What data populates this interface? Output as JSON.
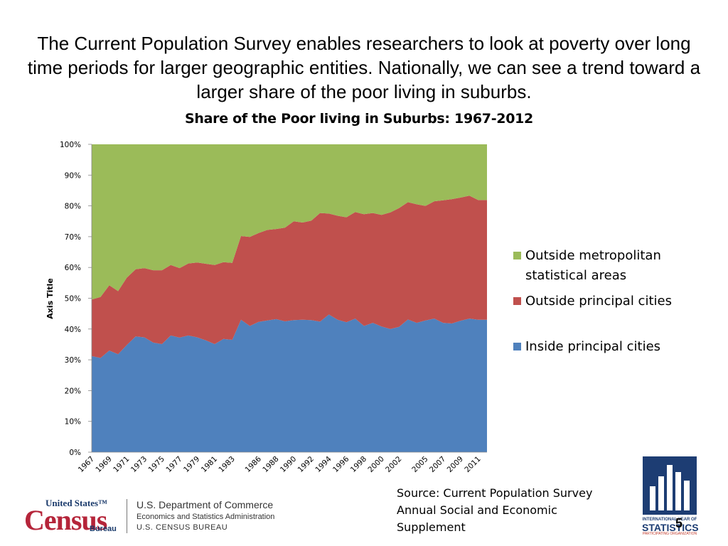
{
  "heading": "The Current Population Survey enables researchers to look at poverty over long time periods for larger geographic entities.  Nationally, we can see a trend toward a larger share of the poor living in suburbs.",
  "chart_data": {
    "type": "area",
    "stacked": true,
    "percent": true,
    "title": "Share of the Poor living in Suburbs:  1967-2012",
    "xlabel": "",
    "ylabel": "Axis Title",
    "ylim": [
      0,
      100
    ],
    "yticks": [
      "0%",
      "10%",
      "20%",
      "30%",
      "40%",
      "50%",
      "60%",
      "70%",
      "80%",
      "90%",
      "100%"
    ],
    "x": [
      1967,
      1968,
      1969,
      1970,
      1971,
      1972,
      1973,
      1974,
      1975,
      1976,
      1977,
      1978,
      1979,
      1980,
      1981,
      1982,
      1983,
      1984,
      1985,
      1986,
      1987,
      1988,
      1989,
      1990,
      1991,
      1992,
      1993,
      1994,
      1995,
      1996,
      1997,
      1998,
      1999,
      2000,
      2001,
      2002,
      2003,
      2004,
      2005,
      2006,
      2007,
      2008,
      2009,
      2010,
      2011,
      2012
    ],
    "xtick_labels": [
      "1967",
      "1969",
      "1971",
      "1973",
      "1975",
      "1977",
      "1979",
      "1981",
      "1983",
      "1986",
      "1988",
      "1990",
      "1992",
      "1994",
      "1996",
      "1998",
      "2000",
      "2002",
      "2005",
      "2007",
      "2009",
      "2011"
    ],
    "legend_position": "right",
    "series": [
      {
        "name": "Inside principal cities",
        "color": "#4f81bd",
        "values": [
          31.2,
          30.6,
          33.0,
          31.8,
          34.8,
          37.6,
          37.3,
          35.6,
          35.1,
          37.9,
          37.2,
          37.9,
          37.3,
          36.3,
          35.1,
          36.8,
          36.5,
          43.0,
          41.0,
          42.3,
          42.8,
          43.2,
          42.5,
          42.9,
          43.0,
          42.9,
          42.4,
          44.7,
          43.0,
          42.2,
          43.4,
          41.0,
          42.0,
          40.8,
          40.0,
          40.7,
          43.1,
          42.0,
          42.8,
          43.4,
          42.0,
          41.8,
          42.7,
          43.4,
          43.0,
          43.0
        ]
      },
      {
        "name": "Outside principal cities",
        "color": "#c0504d",
        "values": [
          18.4,
          19.8,
          21.2,
          20.5,
          21.9,
          21.8,
          22.5,
          23.5,
          24.0,
          22.9,
          22.6,
          23.4,
          24.3,
          24.9,
          25.7,
          24.9,
          25.0,
          27.2,
          28.9,
          28.9,
          29.4,
          29.3,
          30.4,
          32.1,
          31.6,
          32.3,
          35.3,
          32.8,
          33.8,
          34.1,
          34.6,
          36.3,
          35.7,
          36.3,
          37.9,
          38.6,
          38.1,
          38.5,
          37.2,
          38.1,
          39.8,
          40.4,
          40.0,
          39.9,
          38.9,
          38.9
        ]
      },
      {
        "name": "Outside metropolitan statistical areas",
        "color": "#9bbb59",
        "values": [
          50.4,
          49.6,
          45.8,
          47.7,
          43.3,
          40.6,
          40.2,
          40.9,
          40.9,
          39.2,
          40.2,
          38.7,
          38.4,
          38.8,
          39.2,
          38.3,
          38.5,
          29.8,
          30.1,
          28.8,
          27.8,
          27.5,
          27.1,
          25.0,
          25.4,
          24.8,
          22.3,
          22.5,
          23.2,
          23.7,
          22.0,
          22.7,
          22.3,
          22.9,
          22.1,
          20.7,
          18.8,
          19.5,
          20.0,
          18.5,
          18.2,
          17.8,
          17.3,
          16.7,
          18.1,
          18.1
        ]
      }
    ]
  },
  "legend": [
    {
      "label": "Outside metropolitan statistical areas",
      "color": "#9bbb59"
    },
    {
      "label": "Outside principal cities",
      "color": "#c0504d"
    },
    {
      "label": "Inside principal cities",
      "color": "#4f81bd"
    }
  ],
  "source": [
    "Source:  Current Population Survey",
    "Annual Social and Economic",
    "Supplement"
  ],
  "footer": {
    "census_top": "United States™",
    "census_main": "Census",
    "census_bureau": "Bureau",
    "dept_line1": "U.S. Department of Commerce",
    "dept_line2": "Economics and Statistics Administration",
    "dept_line3": "U.S. CENSUS BUREAU"
  },
  "stats_logo": {
    "line1": "INTERNATIONAL YEAR OF",
    "line2": "STATISTICS",
    "line3": "PARTICIPATING ORGANIZATION"
  },
  "slide_number": "5"
}
